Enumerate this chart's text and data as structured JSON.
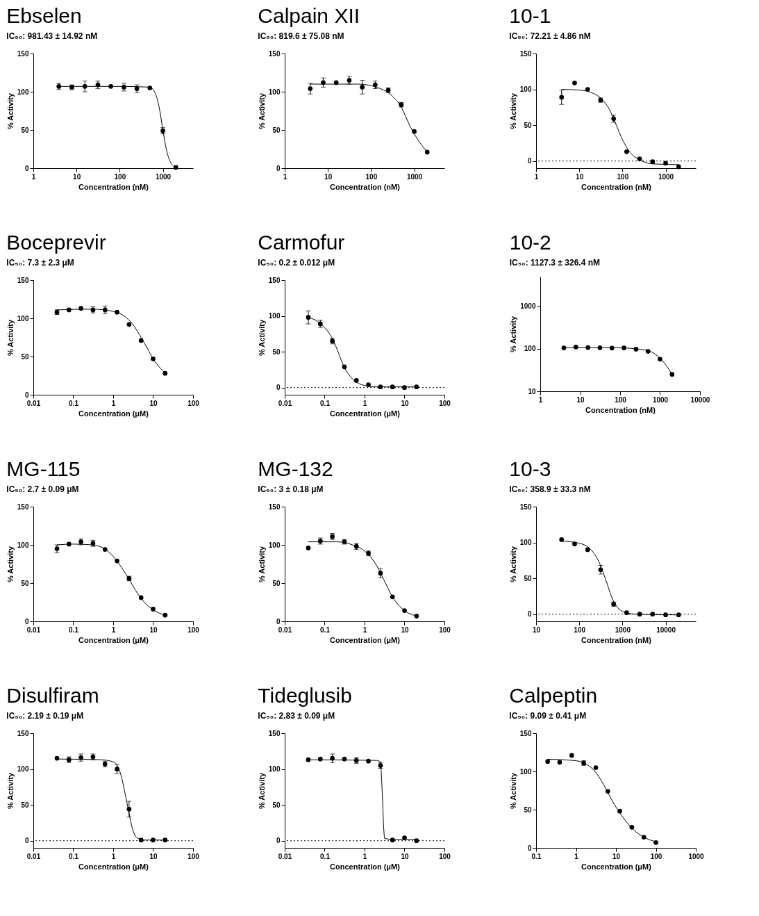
{
  "chart_data": [
    {
      "type": "scatter",
      "title": "Ebselen",
      "subtitle": "IC₅₀: 981.43 ± 14.92 nM",
      "xlabel": "Concentration (nM)",
      "ylabel": "% Activity",
      "log": "x",
      "xlim": [
        1,
        5000
      ],
      "xticks": [
        1,
        10,
        100,
        1000
      ],
      "ylim": [
        0,
        150
      ],
      "yticks": [
        0,
        50,
        100,
        150
      ],
      "series": [
        {
          "type": "line",
          "marker": "none",
          "color": "#000000",
          "x": [
            3.9,
            100,
            500,
            700,
            850,
            1000,
            1200,
            1500,
            2000
          ],
          "values": [
            107,
            107,
            106,
            95,
            75,
            50,
            25,
            8,
            1
          ]
        },
        {
          "type": "scatter",
          "marker": "circle",
          "color": "#000000",
          "x": [
            3.9,
            7.8,
            15.6,
            31.25,
            62.5,
            125,
            250,
            500,
            1000,
            2000
          ],
          "values": [
            107,
            106,
            107,
            109,
            107,
            106,
            104,
            105,
            49,
            1
          ],
          "errors": [
            4,
            3,
            7,
            5,
            null,
            5,
            5,
            null,
            4,
            null
          ]
        }
      ]
    },
    {
      "type": "scatter",
      "title": "Calpain XII",
      "subtitle": "IC₅₀: 819.6 ± 75.08 nM",
      "xlabel": "Concentration (nM)",
      "ylabel": "% Activity",
      "log": "x",
      "xlim": [
        1,
        5000
      ],
      "xticks": [
        1,
        10,
        100,
        1000
      ],
      "ylim": [
        0,
        150
      ],
      "yticks": [
        0,
        50,
        100,
        150
      ],
      "series": [
        {
          "type": "line",
          "marker": "none",
          "color": "#000000",
          "x": [
            3.9,
            50,
            150,
            300,
            500,
            800,
            1000,
            1500,
            2000
          ],
          "values": [
            110,
            110,
            105,
            95,
            80,
            55,
            45,
            30,
            21
          ]
        },
        {
          "type": "scatter",
          "marker": "circle",
          "color": "#000000",
          "x": [
            3.9,
            7.8,
            15.6,
            31.25,
            62.5,
            125,
            250,
            500,
            1000,
            2000
          ],
          "values": [
            104,
            112,
            112,
            115,
            106,
            109,
            102,
            83,
            48,
            21
          ],
          "errors": [
            7,
            6,
            null,
            5,
            9,
            5,
            3,
            3,
            null,
            null
          ]
        }
      ]
    },
    {
      "type": "scatter",
      "title": "10-1",
      "subtitle": "IC₅₀: 72.21 ± 4.86 nM",
      "xlabel": "Concentration (nM)",
      "ylabel": "% Activity",
      "log": "x",
      "xlim": [
        1,
        5000
      ],
      "xticks": [
        1,
        10,
        100,
        1000
      ],
      "ylim": [
        -10,
        150
      ],
      "yticks": [
        0,
        50,
        100,
        150
      ],
      "ref_lines": [
        {
          "axis": "y",
          "value": 0,
          "line_style": "dotted"
        }
      ],
      "series": [
        {
          "type": "line",
          "marker": "none",
          "color": "#000000",
          "x": [
            3.9,
            10,
            20,
            35,
            50,
            72,
            100,
            150,
            250,
            500,
            2000
          ],
          "values": [
            100,
            99,
            95,
            85,
            72,
            50,
            30,
            12,
            2,
            -4,
            -5
          ]
        },
        {
          "type": "scatter",
          "marker": "circle",
          "color": "#000000",
          "x": [
            3.9,
            7.8,
            15.6,
            31.25,
            62.5,
            125,
            250,
            500,
            1000,
            2000
          ],
          "values": [
            89,
            109,
            100,
            85,
            59,
            13,
            3,
            -1,
            -3,
            -8
          ],
          "errors": [
            10,
            null,
            null,
            3,
            5,
            null,
            null,
            null,
            null,
            null
          ]
        }
      ]
    },
    {
      "type": "scatter",
      "title": "Boceprevir",
      "subtitle": "IC₅₀: 7.3 ± 2.3 μM",
      "xlabel": "Concentration (μM)",
      "ylabel": "% Activity",
      "log": "x",
      "xlim": [
        0.01,
        100
      ],
      "xticks": [
        0.01,
        0.1,
        1,
        10,
        100
      ],
      "ylim": [
        0,
        150
      ],
      "yticks": [
        0,
        50,
        100,
        150
      ],
      "series": [
        {
          "type": "line",
          "marker": "none",
          "color": "#000000",
          "x": [
            0.039,
            0.3,
            1,
            2,
            3,
            5,
            7.3,
            10,
            15,
            20
          ],
          "values": [
            111,
            112,
            109,
            102,
            93,
            75,
            60,
            47,
            35,
            28
          ]
        },
        {
          "type": "scatter",
          "marker": "circle",
          "color": "#000000",
          "x": [
            0.039,
            0.078,
            0.156,
            0.3125,
            0.625,
            1.25,
            2.5,
            5,
            10,
            20
          ],
          "values": [
            108,
            111,
            113,
            111,
            111,
            108,
            92,
            71,
            47,
            28
          ],
          "errors": [
            3,
            null,
            null,
            4,
            5,
            null,
            null,
            null,
            null,
            null
          ]
        }
      ]
    },
    {
      "type": "scatter",
      "title": "Carmofur",
      "subtitle": "IC₅₀: 0.2 ± 0.012 μM",
      "xlabel": "Concentration (μM)",
      "ylabel": "% Activity",
      "log": "x",
      "xlim": [
        0.01,
        100
      ],
      "xticks": [
        0.01,
        0.1,
        1,
        10,
        100
      ],
      "ylim": [
        -10,
        150
      ],
      "yticks": [
        0,
        50,
        100,
        150
      ],
      "ref_lines": [
        {
          "axis": "y",
          "value": 0,
          "line_style": "dotted"
        }
      ],
      "series": [
        {
          "type": "line",
          "marker": "none",
          "color": "#000000",
          "x": [
            0.039,
            0.08,
            0.15,
            0.2,
            0.3,
            0.5,
            1,
            2,
            20
          ],
          "values": [
            98,
            89,
            70,
            55,
            30,
            12,
            3,
            1,
            1
          ]
        },
        {
          "type": "scatter",
          "marker": "circle",
          "color": "#000000",
          "x": [
            0.039,
            0.078,
            0.156,
            0.3125,
            0.625,
            1.25,
            2.5,
            5,
            10,
            20
          ],
          "values": [
            98,
            89,
            65,
            29,
            10,
            4,
            1,
            1,
            0,
            1
          ],
          "errors": [
            9,
            5,
            4,
            null,
            null,
            null,
            null,
            null,
            null,
            null
          ]
        }
      ]
    },
    {
      "type": "scatter",
      "title": "10-2",
      "subtitle": "IC₅₀: 1127.3 ± 326.4 nM",
      "xlabel": "Concentration (nM)",
      "ylabel": "% Activity",
      "log": "xy",
      "xlim": [
        1,
        10000
      ],
      "xticks": [
        1,
        10,
        100,
        1000,
        10000
      ],
      "ylim": [
        10,
        5000
      ],
      "yticks": [
        10,
        100,
        1000
      ],
      "series": [
        {
          "type": "line",
          "marker": "none",
          "color": "#000000",
          "x": [
            3.9,
            100,
            300,
            600,
            1000,
            1500,
            2000
          ],
          "values": [
            107,
            105,
            98,
            85,
            60,
            38,
            25
          ]
        },
        {
          "type": "scatter",
          "marker": "circle",
          "color": "#000000",
          "x": [
            3.9,
            7.8,
            15.6,
            31.25,
            62.5,
            125,
            250,
            500,
            1000,
            2000
          ],
          "values": [
            105,
            110,
            107,
            106,
            104,
            105,
            98,
            87,
            57,
            25
          ]
        }
      ]
    },
    {
      "type": "scatter",
      "title": "MG-115",
      "subtitle": "IC₅₀: 2.7 ± 0.09 μM",
      "xlabel": "Concentration (μM)",
      "ylabel": "% Activity",
      "log": "x",
      "xlim": [
        0.01,
        100
      ],
      "xticks": [
        0.01,
        0.1,
        1,
        10,
        100
      ],
      "ylim": [
        0,
        150
      ],
      "yticks": [
        0,
        50,
        100,
        150
      ],
      "series": [
        {
          "type": "line",
          "marker": "none",
          "color": "#000000",
          "x": [
            0.039,
            0.1,
            0.3,
            0.6,
            1,
            1.5,
            2.7,
            4,
            6,
            10,
            20
          ],
          "values": [
            100,
            101,
            100,
            95,
            85,
            73,
            52,
            37,
            25,
            15,
            8
          ]
        },
        {
          "type": "scatter",
          "marker": "circle",
          "color": "#000000",
          "x": [
            0.039,
            0.078,
            0.156,
            0.3125,
            0.625,
            1.25,
            2.5,
            5,
            10,
            20
          ],
          "values": [
            95,
            101,
            104,
            102,
            94,
            79,
            56,
            31,
            16,
            8
          ],
          "errors": [
            5,
            null,
            4,
            4,
            null,
            null,
            3,
            null,
            null,
            null
          ]
        }
      ]
    },
    {
      "type": "scatter",
      "title": "MG-132",
      "subtitle": "IC₅₀: 3 ± 0.18 μM",
      "xlabel": "Concentration (μM)",
      "ylabel": "% Activity",
      "log": "x",
      "xlim": [
        0.01,
        100
      ],
      "xticks": [
        0.01,
        0.1,
        1,
        10,
        100
      ],
      "ylim": [
        0,
        150
      ],
      "yticks": [
        0,
        50,
        100,
        150
      ],
      "series": [
        {
          "type": "line",
          "marker": "none",
          "color": "#000000",
          "x": [
            0.039,
            0.2,
            0.5,
            1,
            2,
            3,
            5,
            10,
            20
          ],
          "values": [
            104,
            104,
            100,
            92,
            73,
            55,
            32,
            14,
            7
          ]
        },
        {
          "type": "scatter",
          "marker": "circle",
          "color": "#000000",
          "x": [
            0.039,
            0.078,
            0.156,
            0.3125,
            0.625,
            1.25,
            2.5,
            5,
            10,
            20
          ],
          "values": [
            96,
            105,
            111,
            104,
            98,
            89,
            63,
            32,
            14,
            7
          ],
          "errors": [
            null,
            4,
            4,
            3,
            4,
            3,
            6,
            null,
            null,
            null
          ]
        }
      ]
    },
    {
      "type": "scatter",
      "title": "10-3",
      "subtitle": "IC₅₀: 358.9 ± 33.3 nM",
      "xlabel": "Concentration (nM)",
      "ylabel": "% Activity",
      "log": "x",
      "xlim": [
        10,
        50000
      ],
      "xticks": [
        10,
        100,
        1000,
        10000
      ],
      "ylim": [
        -10,
        150
      ],
      "yticks": [
        0,
        50,
        100,
        150
      ],
      "ref_lines": [
        {
          "axis": "y",
          "value": 0,
          "line_style": "dotted"
        }
      ],
      "series": [
        {
          "type": "line",
          "marker": "none",
          "color": "#000000",
          "x": [
            39,
            100,
            200,
            300,
            400,
            600,
            1000,
            2000,
            20000
          ],
          "values": [
            102,
            99,
            88,
            70,
            50,
            20,
            4,
            0,
            -1
          ]
        },
        {
          "type": "scatter",
          "marker": "circle",
          "color": "#000000",
          "x": [
            39,
            78,
            156,
            312.5,
            625,
            1250,
            2500,
            5000,
            10000,
            20000
          ],
          "values": [
            104,
            98,
            90,
            62,
            14,
            2,
            0,
            0,
            -1,
            -1
          ],
          "errors": [
            null,
            null,
            null,
            6,
            3,
            null,
            null,
            null,
            null,
            null
          ]
        }
      ]
    },
    {
      "type": "scatter",
      "title": "Disulfiram",
      "subtitle": "IC₅₀: 2.19 ± 0.19 μM",
      "xlabel": "Concentration (μM)",
      "ylabel": "% Activity",
      "log": "x",
      "xlim": [
        0.01,
        100
      ],
      "xticks": [
        0.01,
        0.1,
        1,
        10,
        100
      ],
      "ylim": [
        -10,
        150
      ],
      "yticks": [
        0,
        50,
        100,
        150
      ],
      "ref_lines": [
        {
          "axis": "y",
          "value": 0,
          "line_style": "dotted"
        }
      ],
      "series": [
        {
          "type": "line",
          "marker": "none",
          "color": "#000000",
          "x": [
            0.039,
            0.5,
            1,
            1.5,
            2,
            2.5,
            3,
            4,
            6,
            20
          ],
          "values": [
            114,
            113,
            110,
            95,
            65,
            38,
            18,
            4,
            1,
            1
          ]
        },
        {
          "type": "scatter",
          "marker": "circle",
          "color": "#000000",
          "x": [
            0.039,
            0.078,
            0.156,
            0.3125,
            0.625,
            1.25,
            2.5,
            5,
            10,
            20
          ],
          "values": [
            115,
            113,
            116,
            117,
            107,
            100,
            44,
            1,
            1,
            1
          ],
          "errors": [
            null,
            4,
            5,
            4,
            4,
            6,
            11,
            null,
            null,
            null
          ]
        }
      ]
    },
    {
      "type": "scatter",
      "title": "Tideglusib",
      "subtitle": "IC₅₀: 2.83 ± 0.09 μM",
      "xlabel": "Concentration (μM)",
      "ylabel": "% Activity",
      "log": "x",
      "xlim": [
        0.01,
        100
      ],
      "xticks": [
        0.01,
        0.1,
        1,
        10,
        100
      ],
      "ylim": [
        -10,
        150
      ],
      "yticks": [
        0,
        50,
        100,
        150
      ],
      "ref_lines": [
        {
          "axis": "y",
          "value": 0,
          "line_style": "dotted"
        }
      ],
      "series": [
        {
          "type": "line",
          "marker": "none",
          "color": "#000000",
          "x": [
            0.039,
            2,
            2.5,
            2.7,
            2.83,
            3,
            3.2,
            5,
            20
          ],
          "values": [
            113,
            112,
            110,
            80,
            55,
            20,
            3,
            2,
            2
          ]
        },
        {
          "type": "scatter",
          "marker": "circle",
          "color": "#000000",
          "x": [
            0.039,
            0.078,
            0.156,
            0.3125,
            0.625,
            1.25,
            2.5,
            5,
            10,
            20
          ],
          "values": [
            113,
            114,
            115,
            114,
            112,
            111,
            105,
            1,
            4,
            0
          ],
          "errors": [
            null,
            null,
            6,
            null,
            4,
            null,
            4,
            null,
            null,
            null
          ]
        }
      ]
    },
    {
      "type": "scatter",
      "title": "Calpeptin",
      "subtitle": "IC₅₀: 9.09 ± 0.41 μM",
      "xlabel": "Concentration (μM)",
      "ylabel": "% Activity",
      "log": "x",
      "xlim": [
        0.1,
        1000
      ],
      "xticks": [
        0.1,
        1,
        10,
        100,
        1000
      ],
      "ylim": [
        0,
        150
      ],
      "yticks": [
        0,
        50,
        100,
        150
      ],
      "series": [
        {
          "type": "line",
          "marker": "none",
          "color": "#000000",
          "x": [
            0.195,
            1,
            2,
            3,
            5,
            9.09,
            15,
            30,
            60,
            100
          ],
          "values": [
            116,
            114,
            108,
            100,
            82,
            57,
            40,
            22,
            12,
            8
          ]
        },
        {
          "type": "scatter",
          "marker": "circle",
          "color": "#000000",
          "x": [
            0.195,
            0.39,
            0.78,
            1.56,
            3.125,
            6.25,
            12.5,
            25,
            50,
            100
          ],
          "values": [
            113,
            112,
            121,
            111,
            105,
            74,
            48,
            27,
            14,
            7
          ],
          "errors": [
            null,
            null,
            null,
            3,
            null,
            null,
            null,
            null,
            null,
            null
          ]
        }
      ]
    }
  ]
}
